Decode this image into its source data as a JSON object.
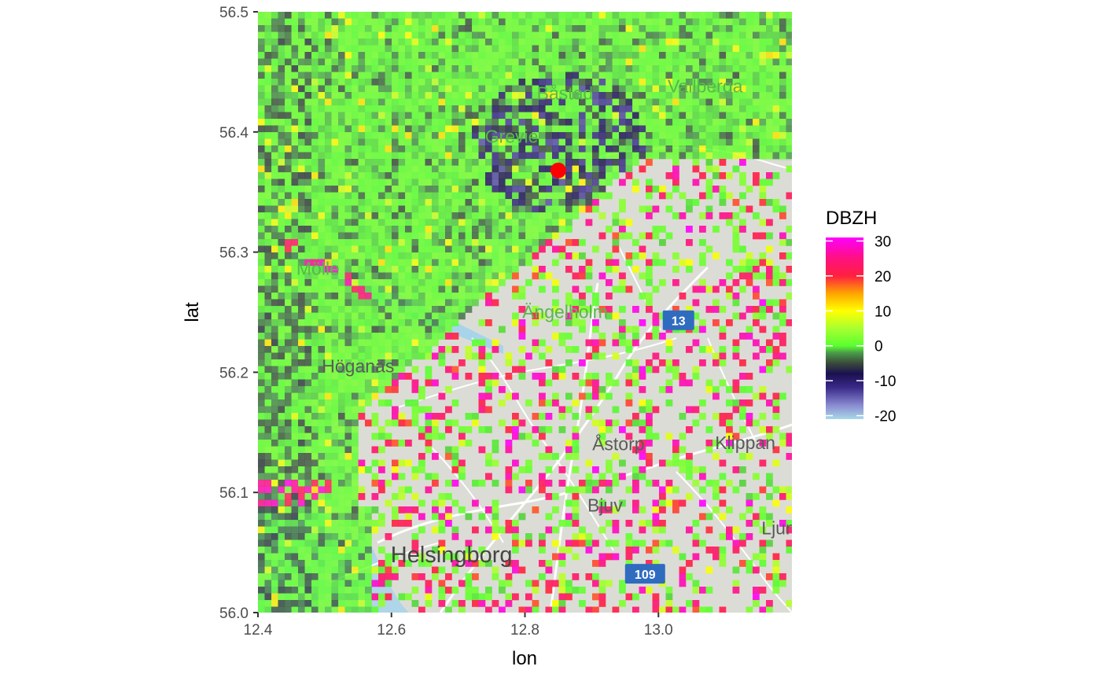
{
  "chart_data": {
    "type": "heatmap",
    "title": "",
    "xlabel": "lon",
    "ylabel": "lat",
    "xlim": [
      12.4,
      13.2
    ],
    "ylim": [
      56.0,
      56.5
    ],
    "x_ticks": [
      "12.4",
      "12.6",
      "12.8",
      "13.0"
    ],
    "x_tick_values": [
      12.4,
      12.6,
      12.8,
      13.0
    ],
    "y_ticks": [
      "56.0",
      "56.1",
      "56.2",
      "56.3",
      "56.4",
      "56.5"
    ],
    "y_tick_values": [
      56.0,
      56.1,
      56.2,
      56.3,
      56.4,
      56.5
    ],
    "grid": false,
    "legend_position": "right",
    "legend": {
      "title": "DBZH",
      "labels": [
        "30",
        "20",
        "10",
        "0",
        "-10",
        "-20"
      ],
      "values": [
        30,
        20,
        10,
        0,
        -10,
        -20
      ],
      "range": [
        -21,
        31
      ],
      "colors": [
        {
          "value": -21,
          "color": "#a8d8e8"
        },
        {
          "value": -17,
          "color": "#8a8ad0"
        },
        {
          "value": -12,
          "color": "#3a2a8a"
        },
        {
          "value": -8,
          "color": "#1a1050"
        },
        {
          "value": -5,
          "color": "#3a4a3a"
        },
        {
          "value": -2,
          "color": "#4a9a4a"
        },
        {
          "value": 0,
          "color": "#5aff30"
        },
        {
          "value": 5,
          "color": "#aaff30"
        },
        {
          "value": 10,
          "color": "#ffff00"
        },
        {
          "value": 15,
          "color": "#ffa500"
        },
        {
          "value": 20,
          "color": "#ff2040"
        },
        {
          "value": 25,
          "color": "#ff1080"
        },
        {
          "value": 31,
          "color": "#ff00ff"
        }
      ]
    },
    "radar_site": {
      "lon": 12.85,
      "lat": 56.368,
      "color": "#ff0000"
    },
    "places": [
      {
        "name": "Vallberga",
        "lon": 13.07,
        "lat": 56.433,
        "style": "green"
      },
      {
        "name": "Båstad",
        "lon": 12.86,
        "lat": 56.427,
        "style": "green"
      },
      {
        "name": "Grevie",
        "lon": 12.78,
        "lat": 56.391,
        "style": "green"
      },
      {
        "name": "Mölle",
        "lon": 12.49,
        "lat": 56.281,
        "style": "green"
      },
      {
        "name": "Ängelholm",
        "lon": 12.86,
        "lat": 56.245,
        "style": "green"
      },
      {
        "name": "Höganäs",
        "lon": 12.55,
        "lat": 56.2,
        "style": "gray"
      },
      {
        "name": "Åstorp",
        "lon": 12.94,
        "lat": 56.135,
        "style": "gray"
      },
      {
        "name": "Klippan",
        "lon": 13.13,
        "lat": 56.136,
        "style": "gray"
      },
      {
        "name": "Bjuv",
        "lon": 12.92,
        "lat": 56.084,
        "style": "gray"
      },
      {
        "name": "Ljun",
        "lon": 13.18,
        "lat": 56.065,
        "style": "gray"
      },
      {
        "name": "Helsingborg",
        "lon": 12.69,
        "lat": 56.042,
        "style": "large"
      }
    ],
    "route_shields": [
      {
        "label": "13",
        "lon": 13.03,
        "lat": 56.243
      },
      {
        "label": "109",
        "lon": 12.98,
        "lat": 56.032
      }
    ],
    "colors": {
      "map_land": "#dcdcd6",
      "map_forest": "#c8dcc0",
      "map_water": "#a8d4ea",
      "road": "#ffffff",
      "shield": "#2f6cc0",
      "axis": "#333333"
    }
  }
}
